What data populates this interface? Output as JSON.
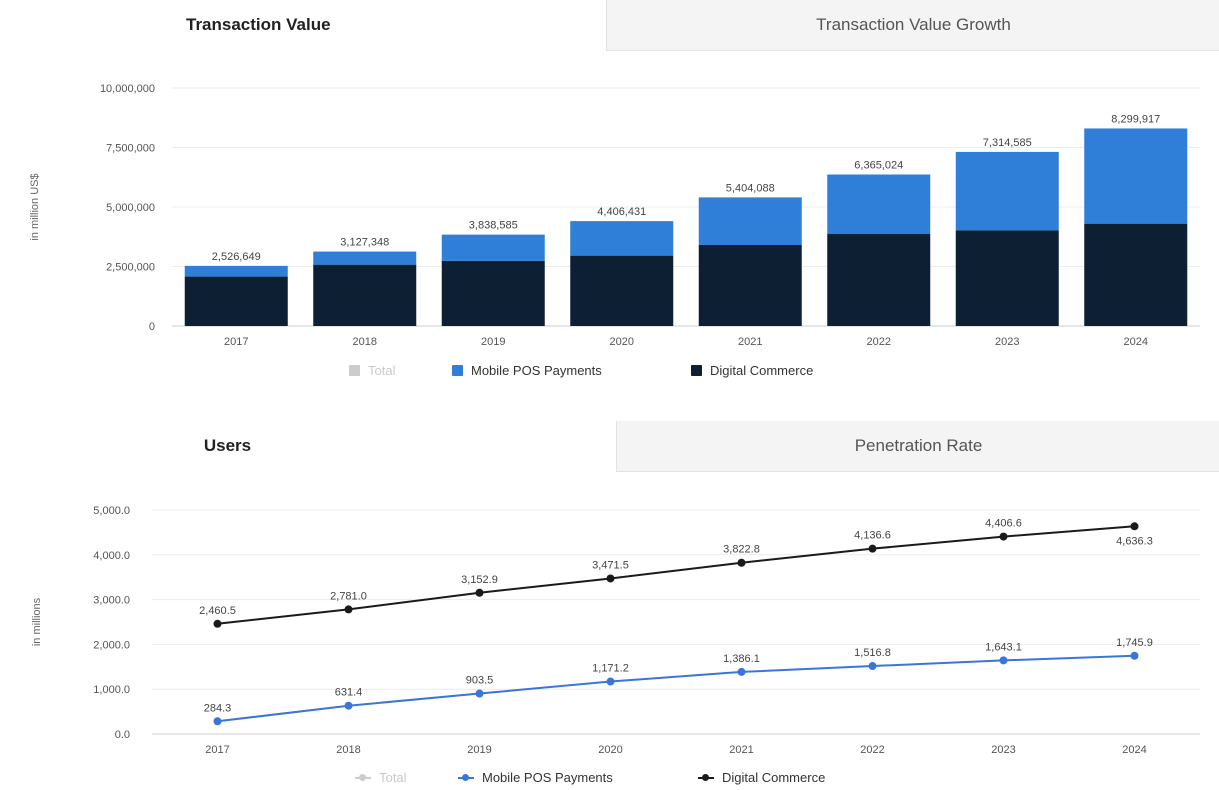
{
  "tabs_top": {
    "active": "Transaction Value",
    "inactive": "Transaction Value Growth"
  },
  "tabs_bottom": {
    "active": "Users",
    "inactive": "Penetration Rate"
  },
  "colors": {
    "mobile_pos": "#2f7ed8",
    "digital_commerce": "#0d1f33",
    "total": "#cccccc",
    "line_mobile": "#3b75d9",
    "line_digital": "#1a1a1a"
  },
  "chart_data": [
    {
      "type": "bar",
      "stacked": true,
      "ylabel": "in million US$",
      "ylim": [
        0,
        10000000
      ],
      "yticks": [
        "0",
        "2,500,000",
        "5,000,000",
        "7,500,000",
        "10,000,000"
      ],
      "yticks_values": [
        0,
        2500000,
        5000000,
        7500000,
        10000000
      ],
      "categories": [
        "2017",
        "2018",
        "2019",
        "2020",
        "2021",
        "2022",
        "2023",
        "2024"
      ],
      "series": [
        {
          "name": "Total",
          "values": [
            2526649,
            3127348,
            3838585,
            4406431,
            5404088,
            6365024,
            7314585,
            8299917
          ]
        },
        {
          "name": "Mobile POS Payments",
          "values": [
            450000,
            550000,
            1100000,
            1450000,
            2000000,
            2500000,
            3300000,
            4000000
          ]
        },
        {
          "name": "Digital Commerce",
          "values": [
            2076649,
            2577348,
            2738585,
            2956431,
            3404088,
            3865024,
            4014585,
            4299917
          ]
        }
      ],
      "total_labels": [
        "2,526,649",
        "3,127,348",
        "3,838,585",
        "4,406,431",
        "5,404,088",
        "6,365,024",
        "7,314,585",
        "8,299,917"
      ],
      "legend": [
        "Total",
        "Mobile POS Payments",
        "Digital Commerce"
      ],
      "grid": true,
      "legend_position": "bottom"
    },
    {
      "type": "line",
      "ylabel": "in millions",
      "ylim": [
        0,
        5000
      ],
      "yticks": [
        "0.0",
        "1,000.0",
        "2,000.0",
        "3,000.0",
        "4,000.0",
        "5,000.0"
      ],
      "yticks_values": [
        0,
        1000,
        2000,
        3000,
        4000,
        5000
      ],
      "categories": [
        "2017",
        "2018",
        "2019",
        "2020",
        "2021",
        "2022",
        "2023",
        "2024"
      ],
      "series": [
        {
          "name": "Mobile POS Payments",
          "values": [
            284.3,
            631.4,
            903.5,
            1171.2,
            1386.1,
            1516.8,
            1643.1,
            1745.9
          ],
          "labels": [
            "284.3",
            "631.4",
            "903.5",
            "1,171.2",
            "1,386.1",
            "1,516.8",
            "1,643.1",
            "1,745.9"
          ]
        },
        {
          "name": "Digital Commerce",
          "values": [
            2460.5,
            2781.0,
            3152.9,
            3471.5,
            3822.8,
            4136.6,
            4406.6,
            4636.3
          ],
          "labels": [
            "2,460.5",
            "2,781.0",
            "3,152.9",
            "3,471.5",
            "3,822.8",
            "4,136.6",
            "4,406.6",
            "4,636.3"
          ]
        }
      ],
      "legend": [
        "Total",
        "Mobile POS Payments",
        "Digital Commerce"
      ],
      "grid": true,
      "legend_position": "bottom"
    }
  ]
}
